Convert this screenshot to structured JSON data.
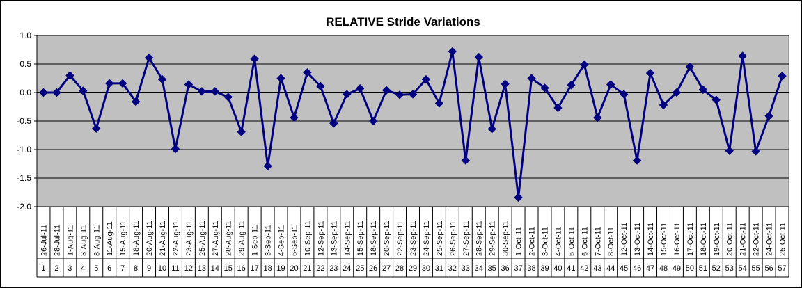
{
  "chart_data": {
    "type": "line",
    "title": "RELATIVE Stride Variations",
    "xlabel": "",
    "ylabel": "",
    "ylim": [
      -2.0,
      1.0
    ],
    "yticks": [
      "1.0",
      "0.5",
      "0.0",
      "-0.5",
      "-1.0",
      "-1.5",
      "-2.0"
    ],
    "grid": true,
    "legend": "none",
    "categories": [
      "26-Jul-11",
      "28-Jul-11",
      "1-Aug-11",
      "3-Aug-11",
      "8-Aug-11",
      "11-Aug-11",
      "15-Aug-11",
      "18-Aug-11",
      "20-Aug-11",
      "21-Aug-11",
      "22-Aug-11",
      "23-Aug-11",
      "25-Aug-11",
      "27-Aug-11",
      "28-Aug-11",
      "29-Aug-11",
      "1-Sep-11",
      "3-Sep-11",
      "4-Sep-11",
      "6-Sep-11",
      "10-Sep-11",
      "12-Sep-11",
      "13-Sep-11",
      "14-Sep-11",
      "15-Sep-11",
      "18-Sep-11",
      "20-Sep-11",
      "22-Sep-11",
      "23-Sep-11",
      "24-Sep-11",
      "25-Sep-11",
      "26-Sep-11",
      "27-Sep-11",
      "28-Sep-11",
      "29-Sep-11",
      "30-Sep-11",
      "1-Oct-11",
      "2-Oct-11",
      "3-Oct-11",
      "4-Oct-11",
      "5-Oct-11",
      "6-Oct-11",
      "7-Oct-11",
      "8-Oct-11",
      "12-Oct-11",
      "13-Oct-11",
      "14-Oct-11",
      "15-Oct-11",
      "16-Oct-11",
      "17-Oct-11",
      "18-Oct-11",
      "19-Oct-11",
      "20-Oct-11",
      "21-Oct-11",
      "22-Oct-11",
      "24-Oct-11",
      "25-Oct-11"
    ],
    "indices": [
      "1",
      "2",
      "3",
      "4",
      "5",
      "6",
      "7",
      "8",
      "9",
      "10",
      "11",
      "12",
      "13",
      "14",
      "15",
      "16",
      "17",
      "18",
      "19",
      "20",
      "21",
      "22",
      "23",
      "24",
      "25",
      "26",
      "27",
      "28",
      "29",
      "30",
      "31",
      "32",
      "33",
      "34",
      "35",
      "36",
      "37",
      "38",
      "39",
      "40",
      "41",
      "42",
      "43",
      "44",
      "45",
      "46",
      "47",
      "48",
      "49",
      "50",
      "51",
      "52",
      "53",
      "54",
      "55",
      "56",
      "57"
    ],
    "series": [
      {
        "values": [
          0.0,
          0.0,
          0.3,
          0.03,
          -0.63,
          0.16,
          0.16,
          -0.16,
          0.61,
          0.23,
          -0.99,
          0.14,
          0.02,
          0.02,
          -0.08,
          -0.69,
          0.59,
          -1.29,
          0.25,
          -0.44,
          0.35,
          0.11,
          -0.54,
          -0.03,
          0.07,
          -0.5,
          0.04,
          -0.04,
          -0.03,
          0.23,
          -0.19,
          0.72,
          -1.19,
          0.62,
          -0.64,
          0.15,
          -1.84,
          0.25,
          0.08,
          -0.27,
          0.13,
          0.49,
          -0.44,
          0.14,
          -0.03,
          -1.19,
          0.34,
          -0.22,
          0.0,
          0.45,
          0.05,
          -0.13,
          -1.02,
          0.64,
          -1.03,
          -0.41,
          0.29
        ],
        "color": "#000080"
      }
    ]
  },
  "colors": {
    "plot_bg": "#c0c0c0",
    "line": "#000080",
    "grid": "#000000"
  }
}
